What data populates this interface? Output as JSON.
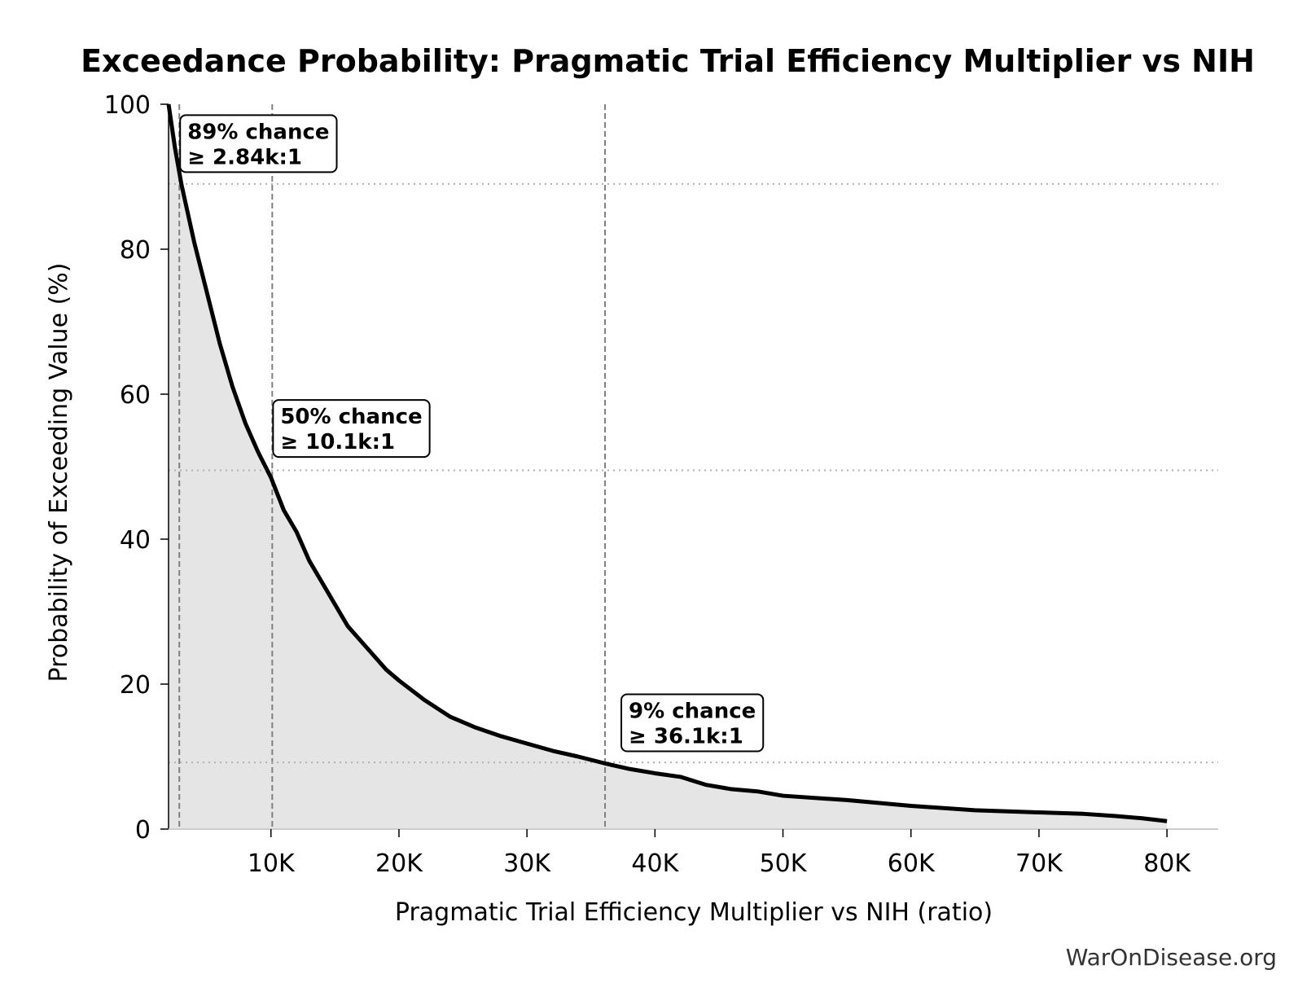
{
  "chart_data": {
    "type": "area",
    "title": "Exceedance Probability: Pragmatic Trial Efficiency Multiplier vs NIH",
    "xlabel": "Pragmatic Trial Efficiency Multiplier vs NIH (ratio)",
    "ylabel": "Probability of Exceeding Value (%)",
    "xlim": [
      2000,
      84000
    ],
    "ylim": [
      0,
      100
    ],
    "x_ticks": [
      10000,
      20000,
      30000,
      40000,
      50000,
      60000,
      70000,
      80000
    ],
    "x_tick_labels": [
      "10K",
      "20K",
      "30K",
      "40K",
      "50K",
      "60K",
      "70K",
      "80K"
    ],
    "y_ticks": [
      0,
      20,
      40,
      60,
      80,
      100
    ],
    "y_tick_labels": [
      "0",
      "20",
      "40",
      "60",
      "80",
      "100"
    ],
    "grid": false,
    "colors": {
      "line": "#000000",
      "fill": "#e5e5e5",
      "reference": "#808080",
      "threshold": "#b0b0b0"
    },
    "series": [
      {
        "x": [
          2000,
          2500,
          3000,
          3500,
          4000,
          5000,
          6000,
          7000,
          8000,
          9000,
          10000,
          11000,
          12000,
          13000,
          14000,
          15000,
          16000,
          17000,
          18000,
          19000,
          20000,
          22000,
          24000,
          26000,
          28000,
          30000,
          32000,
          34000,
          36000,
          38000,
          40000,
          42000,
          44000,
          46000,
          48000,
          50000,
          55000,
          60000,
          65000,
          70000,
          73500,
          76000,
          78000,
          80000
        ],
        "y": [
          100,
          94,
          89,
          85,
          81,
          74,
          67,
          61,
          56,
          52,
          48.5,
          44,
          41,
          37,
          34,
          31,
          28,
          26,
          24,
          22,
          20.5,
          17.8,
          15.5,
          14,
          12.8,
          11.8,
          10.8,
          10,
          9.1,
          8.3,
          7.7,
          7.2,
          6.1,
          5.5,
          5.2,
          4.6,
          4,
          3.2,
          2.6,
          2.3,
          2.1,
          1.8,
          1.5,
          1.1
        ]
      }
    ],
    "reference_lines": [
      {
        "x": 2840,
        "y": 89,
        "label_line1": "89% chance",
        "label_line2": "≥ 2.84k:1"
      },
      {
        "x": 10100,
        "y": 49.5,
        "label_line1": "50% chance",
        "label_line2": "≥ 10.1k:1"
      },
      {
        "x": 36100,
        "y": 9.2,
        "label_line1": "9% chance",
        "label_line2": "≥ 36.1k:1"
      }
    ]
  },
  "credit": "WarOnDisease.org"
}
